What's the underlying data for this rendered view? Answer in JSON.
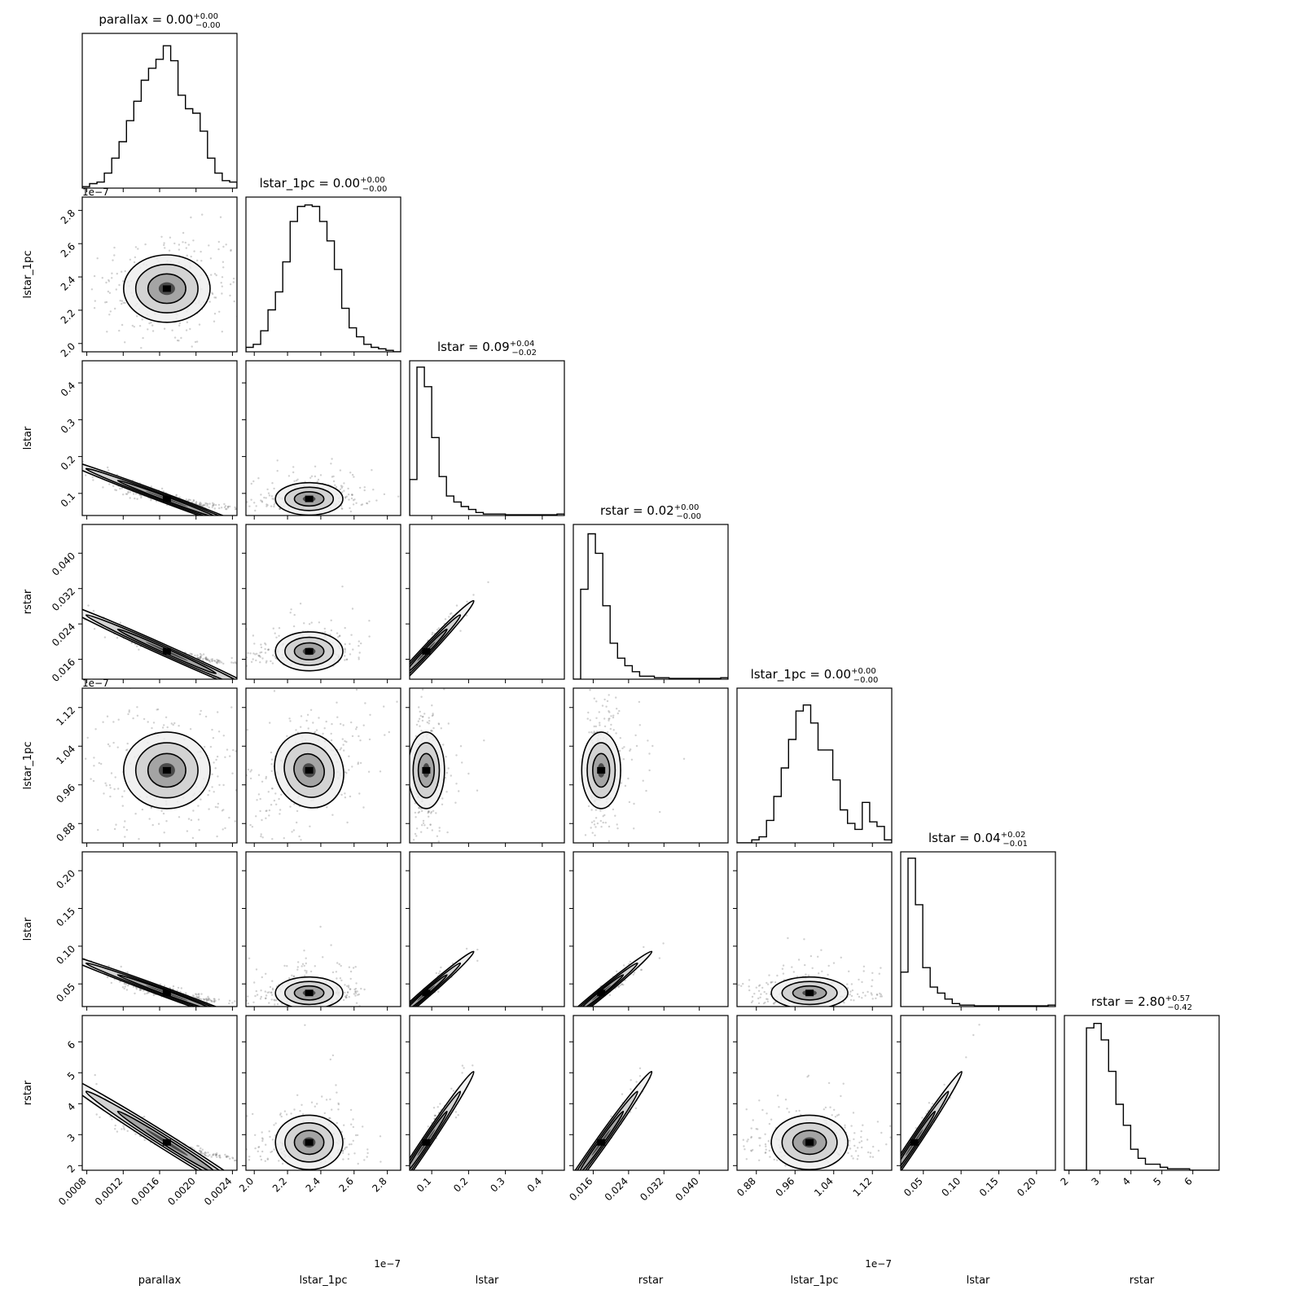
{
  "chart_data": {
    "type": "corner",
    "params": [
      {
        "label": "parallax",
        "median": "0.00",
        "plus": "+0.00",
        "minus": "−0.00",
        "range": [
          0.00075,
          0.00245
        ],
        "ticks": [
          {
            "v": 0.0008,
            "t": "0.0008"
          },
          {
            "v": 0.0012,
            "t": "0.0012"
          },
          {
            "v": 0.0016,
            "t": "0.0016"
          },
          {
            "v": 0.002,
            "t": "0.0020"
          },
          {
            "v": 0.0024,
            "t": "0.0024"
          }
        ],
        "center": 0.00168,
        "sd": 0.00027,
        "skew": false,
        "offset": ""
      },
      {
        "label": "lstar_1pc",
        "median": "0.00",
        "plus": "+0.00",
        "minus": "−0.00",
        "range": [
          1.95e-07,
          2.88e-07
        ],
        "ticks": [
          {
            "v": 2e-07,
            "t": "2.0"
          },
          {
            "v": 2.2e-07,
            "t": "2.2"
          },
          {
            "v": 2.4e-07,
            "t": "2.4"
          },
          {
            "v": 2.6e-07,
            "t": "2.6"
          },
          {
            "v": 2.8e-07,
            "t": "2.8"
          }
        ],
        "center": 2.33e-07,
        "sd": 1.15e-08,
        "skew": false,
        "offset": "1e−7"
      },
      {
        "label": "lstar",
        "median": "0.09",
        "plus": "+0.04",
        "minus": "−0.02",
        "range": [
          0.04,
          0.46
        ],
        "ticks": [
          {
            "v": 0.1,
            "t": "0.1"
          },
          {
            "v": 0.2,
            "t": "0.2"
          },
          {
            "v": 0.3,
            "t": "0.3"
          },
          {
            "v": 0.4,
            "t": "0.4"
          }
        ],
        "center": 0.085,
        "sd": 0.025,
        "skew": true,
        "offset": ""
      },
      {
        "label": "rstar",
        "median": "0.02",
        "plus": "+0.00",
        "minus": "−0.00",
        "range": [
          0.0115,
          0.0465
        ],
        "ticks": [
          {
            "v": 0.016,
            "t": "0.016"
          },
          {
            "v": 0.024,
            "t": "0.024"
          },
          {
            "v": 0.032,
            "t": "0.032"
          },
          {
            "v": 0.04,
            "t": "0.040"
          }
        ],
        "center": 0.0178,
        "sd": 0.0025,
        "skew": true,
        "offset": ""
      },
      {
        "label": "lstar_1pc",
        "median": "0.00",
        "plus": "+0.00",
        "minus": "−0.00",
        "range": [
          8.4e-08,
          1.16e-07
        ],
        "ticks": [
          {
            "v": 8.8e-08,
            "t": "0.88"
          },
          {
            "v": 9.6e-08,
            "t": "0.96"
          },
          {
            "v": 1.04e-07,
            "t": "1.04"
          },
          {
            "v": 1.12e-07,
            "t": "1.12"
          }
        ],
        "center": 9.9e-08,
        "sd": 4.5e-09,
        "skew": false,
        "offset": "1e−7"
      },
      {
        "label": "lstar",
        "median": "0.04",
        "plus": "+0.02",
        "minus": "−0.01",
        "range": [
          0.02,
          0.225
        ],
        "ticks": [
          {
            "v": 0.05,
            "t": "0.05"
          },
          {
            "v": 0.1,
            "t": "0.10"
          },
          {
            "v": 0.15,
            "t": "0.15"
          },
          {
            "v": 0.2,
            "t": "0.20"
          }
        ],
        "center": 0.038,
        "sd": 0.012,
        "skew": true,
        "offset": ""
      },
      {
        "label": "rstar",
        "median": "2.80",
        "plus": "+0.57",
        "minus": "−0.42",
        "range": [
          1.85,
          6.85
        ],
        "ticks": [
          {
            "v": 2,
            "t": "2"
          },
          {
            "v": 3,
            "t": "3"
          },
          {
            "v": 4,
            "t": "4"
          },
          {
            "v": 5,
            "t": "5"
          },
          {
            "v": 6,
            "t": "6"
          }
        ],
        "center": 2.75,
        "sd": 0.5,
        "skew": true,
        "offset": ""
      }
    ],
    "histograms": [
      [
        0.01,
        0.03,
        0.04,
        0.1,
        0.2,
        0.31,
        0.45,
        0.58,
        0.72,
        0.8,
        0.86,
        0.95,
        0.85,
        0.62,
        0.53,
        0.5,
        0.38,
        0.2,
        0.1,
        0.05,
        0.04
      ],
      [
        0.03,
        0.05,
        0.14,
        0.28,
        0.4,
        0.6,
        0.87,
        0.97,
        0.98,
        0.97,
        0.87,
        0.74,
        0.55,
        0.29,
        0.16,
        0.1,
        0.05,
        0.03,
        0.02,
        0.01,
        0.0
      ],
      [
        0.24,
        0.99,
        0.86,
        0.52,
        0.26,
        0.13,
        0.09,
        0.06,
        0.04,
        0.02,
        0.01,
        0.01,
        0.01,
        0.005,
        0.005,
        0.005,
        0.005,
        0.005,
        0.005,
        0.005,
        0.01
      ],
      [
        0.0,
        0.6,
        0.97,
        0.84,
        0.49,
        0.24,
        0.14,
        0.09,
        0.05,
        0.02,
        0.02,
        0.01,
        0.01,
        0.005,
        0.005,
        0.005,
        0.005,
        0.005,
        0.005,
        0.005,
        0.01
      ],
      [
        0.0,
        0.0,
        0.02,
        0.04,
        0.15,
        0.31,
        0.5,
        0.69,
        0.88,
        0.92,
        0.8,
        0.62,
        0.62,
        0.42,
        0.22,
        0.13,
        0.09,
        0.27,
        0.14,
        0.11,
        0.02
      ],
      [
        0.23,
        0.99,
        0.68,
        0.26,
        0.13,
        0.09,
        0.05,
        0.02,
        0.01,
        0.01,
        0.005,
        0.005,
        0.005,
        0.005,
        0.005,
        0.005,
        0.005,
        0.005,
        0.005,
        0.005,
        0.01
      ],
      [
        0.0,
        0.0,
        0.0,
        0.95,
        0.98,
        0.87,
        0.66,
        0.44,
        0.3,
        0.14,
        0.08,
        0.04,
        0.04,
        0.02,
        0.01,
        0.01,
        0.01,
        0.0,
        0.0,
        0.0,
        0.0
      ]
    ],
    "correlations": [
      [
        1,
        0,
        -0.95,
        -0.97,
        0,
        -0.95,
        -0.97
      ],
      [
        0,
        1,
        0.15,
        0.1,
        0.3,
        0.1,
        0.08
      ],
      [
        -0.95,
        0.15,
        1,
        0.97,
        0.1,
        0.97,
        0.97
      ],
      [
        -0.97,
        0.1,
        0.97,
        1,
        0.05,
        0.96,
        0.98
      ],
      [
        0,
        0.3,
        0.1,
        0.05,
        1,
        0.05,
        0.05
      ],
      [
        -0.95,
        0.1,
        0.97,
        0.96,
        0.05,
        1,
        0.98
      ],
      [
        -0.97,
        0.08,
        0.97,
        0.98,
        0.05,
        0.98,
        1
      ]
    ]
  }
}
